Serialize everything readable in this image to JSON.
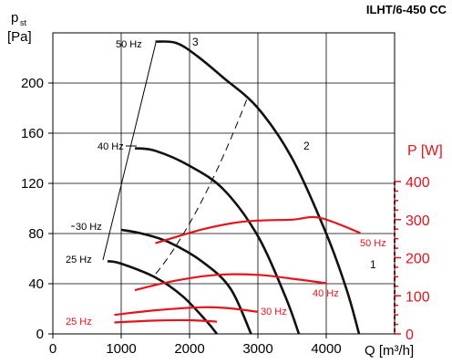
{
  "chart_data": {
    "type": "line",
    "title": "ILHT/6-450 CC",
    "colors": {
      "pressure": "#111111",
      "power": "#e3141b",
      "grid": "#000000"
    },
    "x_axis": {
      "label": "Q [m³/h]",
      "range": [
        0,
        5000
      ],
      "ticks": [
        0,
        1000,
        2000,
        3000,
        4000
      ],
      "tick_labels": [
        "0",
        "1000",
        "2000",
        "3000",
        "4000"
      ]
    },
    "y_axis_left": {
      "label_main": "p",
      "label_sub": "st",
      "label_unit": "[Pa]",
      "range": [
        0,
        240
      ],
      "ticks": [
        0,
        40,
        80,
        120,
        160,
        200
      ],
      "tick_labels": [
        "0",
        "40",
        "80",
        "120",
        "160",
        "200"
      ]
    },
    "y_axis_right": {
      "label": "P [W]",
      "range": [
        0,
        400
      ],
      "ticks": [
        0,
        100,
        200,
        300,
        400
      ],
      "tick_labels": [
        "0",
        "100",
        "200",
        "300",
        "400"
      ]
    },
    "grid": true,
    "pressure_series": [
      {
        "name": "50 Hz",
        "points": [
          [
            1500,
            233
          ],
          [
            1800,
            232
          ],
          [
            2100,
            222
          ],
          [
            2500,
            204
          ],
          [
            3000,
            180
          ],
          [
            3500,
            140
          ],
          [
            4000,
            80
          ],
          [
            4300,
            35
          ],
          [
            4480,
            0
          ]
        ]
      },
      {
        "name": "40 Hz",
        "points": [
          [
            1200,
            148
          ],
          [
            1500,
            146
          ],
          [
            2000,
            134
          ],
          [
            2500,
            115
          ],
          [
            3000,
            78
          ],
          [
            3400,
            30
          ],
          [
            3600,
            0
          ]
        ]
      },
      {
        "name": "30 Hz",
        "points": [
          [
            1000,
            83
          ],
          [
            1300,
            80
          ],
          [
            1700,
            73
          ],
          [
            2200,
            57
          ],
          [
            2600,
            36
          ],
          [
            2900,
            0
          ]
        ]
      },
      {
        "name": "25 Hz",
        "points": [
          [
            800,
            58
          ],
          [
            1000,
            56
          ],
          [
            1500,
            45
          ],
          [
            1900,
            30
          ],
          [
            2250,
            10
          ],
          [
            2400,
            0
          ]
        ]
      }
    ],
    "system_curves": [
      {
        "name": "1",
        "points": [
          [
            1500,
            233
          ],
          [
            1800,
            232
          ],
          [
            2100,
            222
          ],
          [
            2500,
            204
          ],
          [
            3000,
            180
          ],
          [
            3500,
            140
          ],
          [
            4000,
            80
          ],
          [
            4300,
            35
          ],
          [
            4480,
            0
          ]
        ]
      },
      {
        "name": "2",
        "points": [
          [
            1200,
            148
          ],
          [
            1500,
            146
          ],
          [
            2000,
            134
          ],
          [
            2500,
            115
          ],
          [
            3000,
            78
          ],
          [
            3400,
            30
          ],
          [
            3600,
            0
          ]
        ]
      }
    ],
    "power_series": [
      {
        "name": "50 Hz",
        "points": [
          [
            1500,
            238
          ],
          [
            2200,
            275
          ],
          [
            2800,
            295
          ],
          [
            3500,
            300
          ],
          [
            3900,
            305
          ],
          [
            4500,
            265
          ]
        ]
      },
      {
        "name": "40 Hz",
        "points": [
          [
            1200,
            115
          ],
          [
            1800,
            140
          ],
          [
            2400,
            155
          ],
          [
            3000,
            155
          ],
          [
            3500,
            145
          ],
          [
            4000,
            133
          ]
        ]
      },
      {
        "name": "30 Hz",
        "points": [
          [
            900,
            50
          ],
          [
            1500,
            62
          ],
          [
            2200,
            70
          ],
          [
            2600,
            67
          ],
          [
            3000,
            58
          ]
        ]
      },
      {
        "name": "25 Hz",
        "points": [
          [
            900,
            30
          ],
          [
            1500,
            35
          ],
          [
            2000,
            36
          ],
          [
            2400,
            32
          ]
        ]
      }
    ],
    "curve_labels": {
      "pressure_50": "50 Hz",
      "pressure_40": "40 Hz",
      "pressure_30": "30 Hz",
      "pressure_25": "25 Hz",
      "power_50": "50 Hz",
      "power_40": "40 Hz",
      "power_30": "30 Hz",
      "power_25": "25 Hz",
      "curve_1": "1",
      "curve_2": "2",
      "curve_3": "3"
    }
  }
}
